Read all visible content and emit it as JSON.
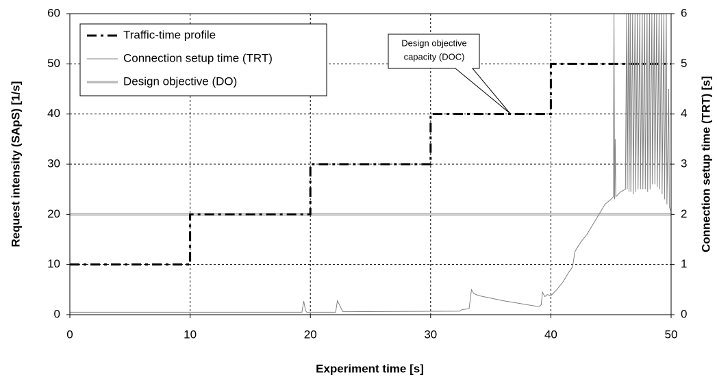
{
  "chart_data": {
    "type": "line",
    "xlabel": "Experiment time [s]",
    "ylabel": "Request intensity (SApS) [1/s]",
    "y2label": "Connection setup time (TRT) [s]",
    "xlim": [
      0,
      50
    ],
    "xticks": [
      0,
      10,
      20,
      30,
      40,
      50
    ],
    "ylim": [
      0,
      60
    ],
    "yticks": [
      0,
      10,
      20,
      30,
      40,
      50,
      60
    ],
    "y2lim": [
      0,
      6
    ],
    "y2ticks": [
      0,
      1,
      2,
      3,
      4,
      5,
      6
    ],
    "grid": true,
    "legend": "upper left",
    "annotation": [
      "Design objective",
      "capacity (DOC)"
    ],
    "series": [
      {
        "name": "Traffic-time profile",
        "color": "#000000",
        "style": "dashdot",
        "x": [
          0,
          10,
          10,
          20,
          20,
          30,
          30,
          40,
          40,
          50
        ],
        "values": [
          10,
          10,
          20,
          20,
          30,
          30,
          40,
          40,
          50,
          50
        ]
      },
      {
        "name": "Connection setup time (TRT)",
        "color": "#808080",
        "style": "thin",
        "axis": "y2",
        "x": [
          0,
          19.3,
          19.45,
          19.6,
          19.7,
          22.1,
          22.25,
          22.7,
          32.4,
          32.6,
          33.2,
          33.4,
          33.6,
          34,
          35,
          36,
          37,
          38,
          39,
          39.2,
          39.3,
          39.5,
          39.7,
          40,
          40.5,
          41,
          41.5,
          41.8,
          42,
          42.1,
          42.5,
          43,
          43.5,
          44,
          44.5,
          45,
          45.2,
          45.25,
          45.3,
          45.35,
          45.4,
          45.8,
          46.2,
          46.3,
          46.35,
          46.45,
          46.5,
          46.6,
          46.65,
          46.8,
          46.85,
          47,
          47.05,
          47.2,
          47.25,
          47.4,
          47.45,
          47.6,
          47.65,
          47.8,
          47.85,
          48,
          48.05,
          48.2,
          48.25,
          48.4,
          48.45,
          48.6,
          48.65,
          48.8,
          48.85,
          49,
          49.05,
          49.2,
          49.25,
          49.4,
          49.45,
          49.6,
          49.65,
          49.8,
          49.85,
          50
        ],
        "values": [
          0.05,
          0.05,
          0.27,
          0.08,
          0.05,
          0.05,
          0.28,
          0.06,
          0.07,
          0.1,
          0.12,
          0.5,
          0.42,
          0.38,
          0.33,
          0.28,
          0.24,
          0.2,
          0.16,
          0.2,
          0.45,
          0.36,
          0.4,
          0.38,
          0.5,
          0.65,
          0.85,
          0.95,
          1.25,
          1.3,
          1.45,
          1.6,
          1.8,
          2.0,
          2.2,
          2.3,
          2.35,
          6,
          2.3,
          3.5,
          2.35,
          2.45,
          2.5,
          6,
          2.5,
          6,
          2.45,
          6,
          2.45,
          6,
          2.4,
          6,
          2.45,
          6,
          2.5,
          6,
          2.5,
          6,
          2.5,
          6,
          2.5,
          6,
          2.45,
          6,
          2.5,
          6,
          2.6,
          6,
          2.6,
          6,
          2.55,
          6,
          2.5,
          6,
          2.4,
          6,
          2.3,
          6,
          2.2,
          4.5,
          2.15,
          2.05
        ]
      },
      {
        "name": "Design objective (DO)",
        "color": "#999999",
        "style": "double",
        "axis": "y2",
        "x": [
          0,
          50
        ],
        "values": [
          2,
          2
        ]
      }
    ]
  }
}
